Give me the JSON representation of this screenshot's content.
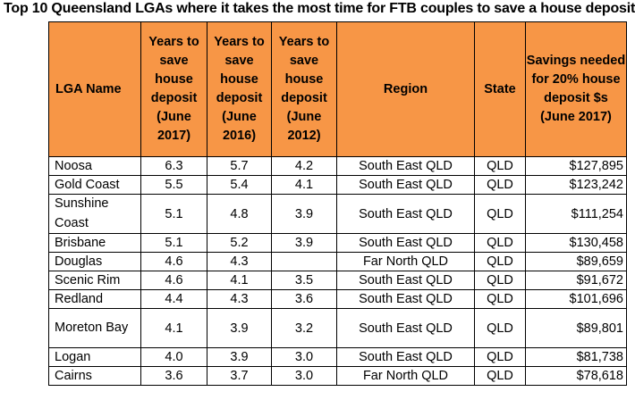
{
  "title": "Top 10 Queensland LGAs where it takes the most time for FTB couples to save a house deposit",
  "headers": [
    "LGA Name",
    "Years to save house deposit (June 2017)",
    "Years to save house deposit (June 2016)",
    "Years to save house deposit (June 2012)",
    "Region",
    "State",
    "Savings needed for 20% house deposit $s (June 2017)"
  ],
  "header_color": "#f79646",
  "rows": [
    {
      "lga": "Noosa",
      "y2017": "6.3",
      "y2016": "5.7",
      "y2012": "4.2",
      "region": "South East QLD",
      "state": "QLD",
      "savings": "$127,895"
    },
    {
      "lga": "Gold Coast",
      "y2017": "5.5",
      "y2016": "5.4",
      "y2012": "4.1",
      "region": "South East QLD",
      "state": "QLD",
      "savings": "$123,242"
    },
    {
      "lga": "Sunshine Coast",
      "y2017": "5.1",
      "y2016": "4.8",
      "y2012": "3.9",
      "region": "South East QLD",
      "state": "QLD",
      "savings": "$111,254"
    },
    {
      "lga": "Brisbane",
      "y2017": "5.1",
      "y2016": "5.2",
      "y2012": "3.9",
      "region": "South East QLD",
      "state": "QLD",
      "savings": "$130,458"
    },
    {
      "lga": "Douglas",
      "y2017": "4.6",
      "y2016": "4.3",
      "y2012": "",
      "region": "Far North QLD",
      "state": "QLD",
      "savings": "$89,659"
    },
    {
      "lga": "Scenic Rim",
      "y2017": "4.6",
      "y2016": "4.1",
      "y2012": "3.5",
      "region": "South East QLD",
      "state": "QLD",
      "savings": "$91,672"
    },
    {
      "lga": "Redland",
      "y2017": "4.4",
      "y2016": "4.3",
      "y2012": "3.6",
      "region": "South East QLD",
      "state": "QLD",
      "savings": "$101,696"
    },
    {
      "lga": "Moreton Bay",
      "y2017": "4.1",
      "y2016": "3.9",
      "y2012": "3.2",
      "region": "South East QLD",
      "state": "QLD",
      "savings": "$89,801"
    },
    {
      "lga": "Logan",
      "y2017": "4.0",
      "y2016": "3.9",
      "y2012": "3.0",
      "region": "South East QLD",
      "state": "QLD",
      "savings": "$81,738"
    },
    {
      "lga": "Cairns",
      "y2017": "3.6",
      "y2016": "3.7",
      "y2012": "3.0",
      "region": "Far North QLD",
      "state": "QLD",
      "savings": "$78,618"
    }
  ]
}
